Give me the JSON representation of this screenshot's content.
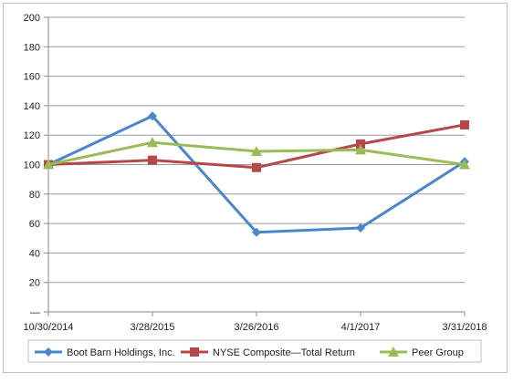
{
  "chart_data": {
    "type": "line",
    "categories": [
      "10/30/2014",
      "3/28/2015",
      "3/26/2016",
      "4/1/2017",
      "3/31/2018"
    ],
    "ylim": [
      0,
      200
    ],
    "yticks": [
      0,
      20,
      40,
      60,
      80,
      100,
      120,
      140,
      160,
      180,
      200
    ],
    "ytick_labels": [
      "—",
      "20",
      "40",
      "60",
      "80",
      "100",
      "120",
      "140",
      "160",
      "180",
      "200"
    ],
    "grid": true,
    "legend_position": "bottom",
    "series": [
      {
        "name": "Boot Barn Holdings, Inc.",
        "color": "#4a86c8",
        "marker": "diamond",
        "values": [
          100,
          133,
          54,
          57,
          102
        ]
      },
      {
        "name": "NYSE Composite—Total Return",
        "color": "#b54848",
        "marker": "square",
        "values": [
          100,
          103,
          98,
          114,
          127
        ]
      },
      {
        "name": "Peer Group",
        "color": "#9bbb59",
        "marker": "triangle",
        "values": [
          100,
          115,
          109,
          110,
          100
        ]
      }
    ]
  }
}
